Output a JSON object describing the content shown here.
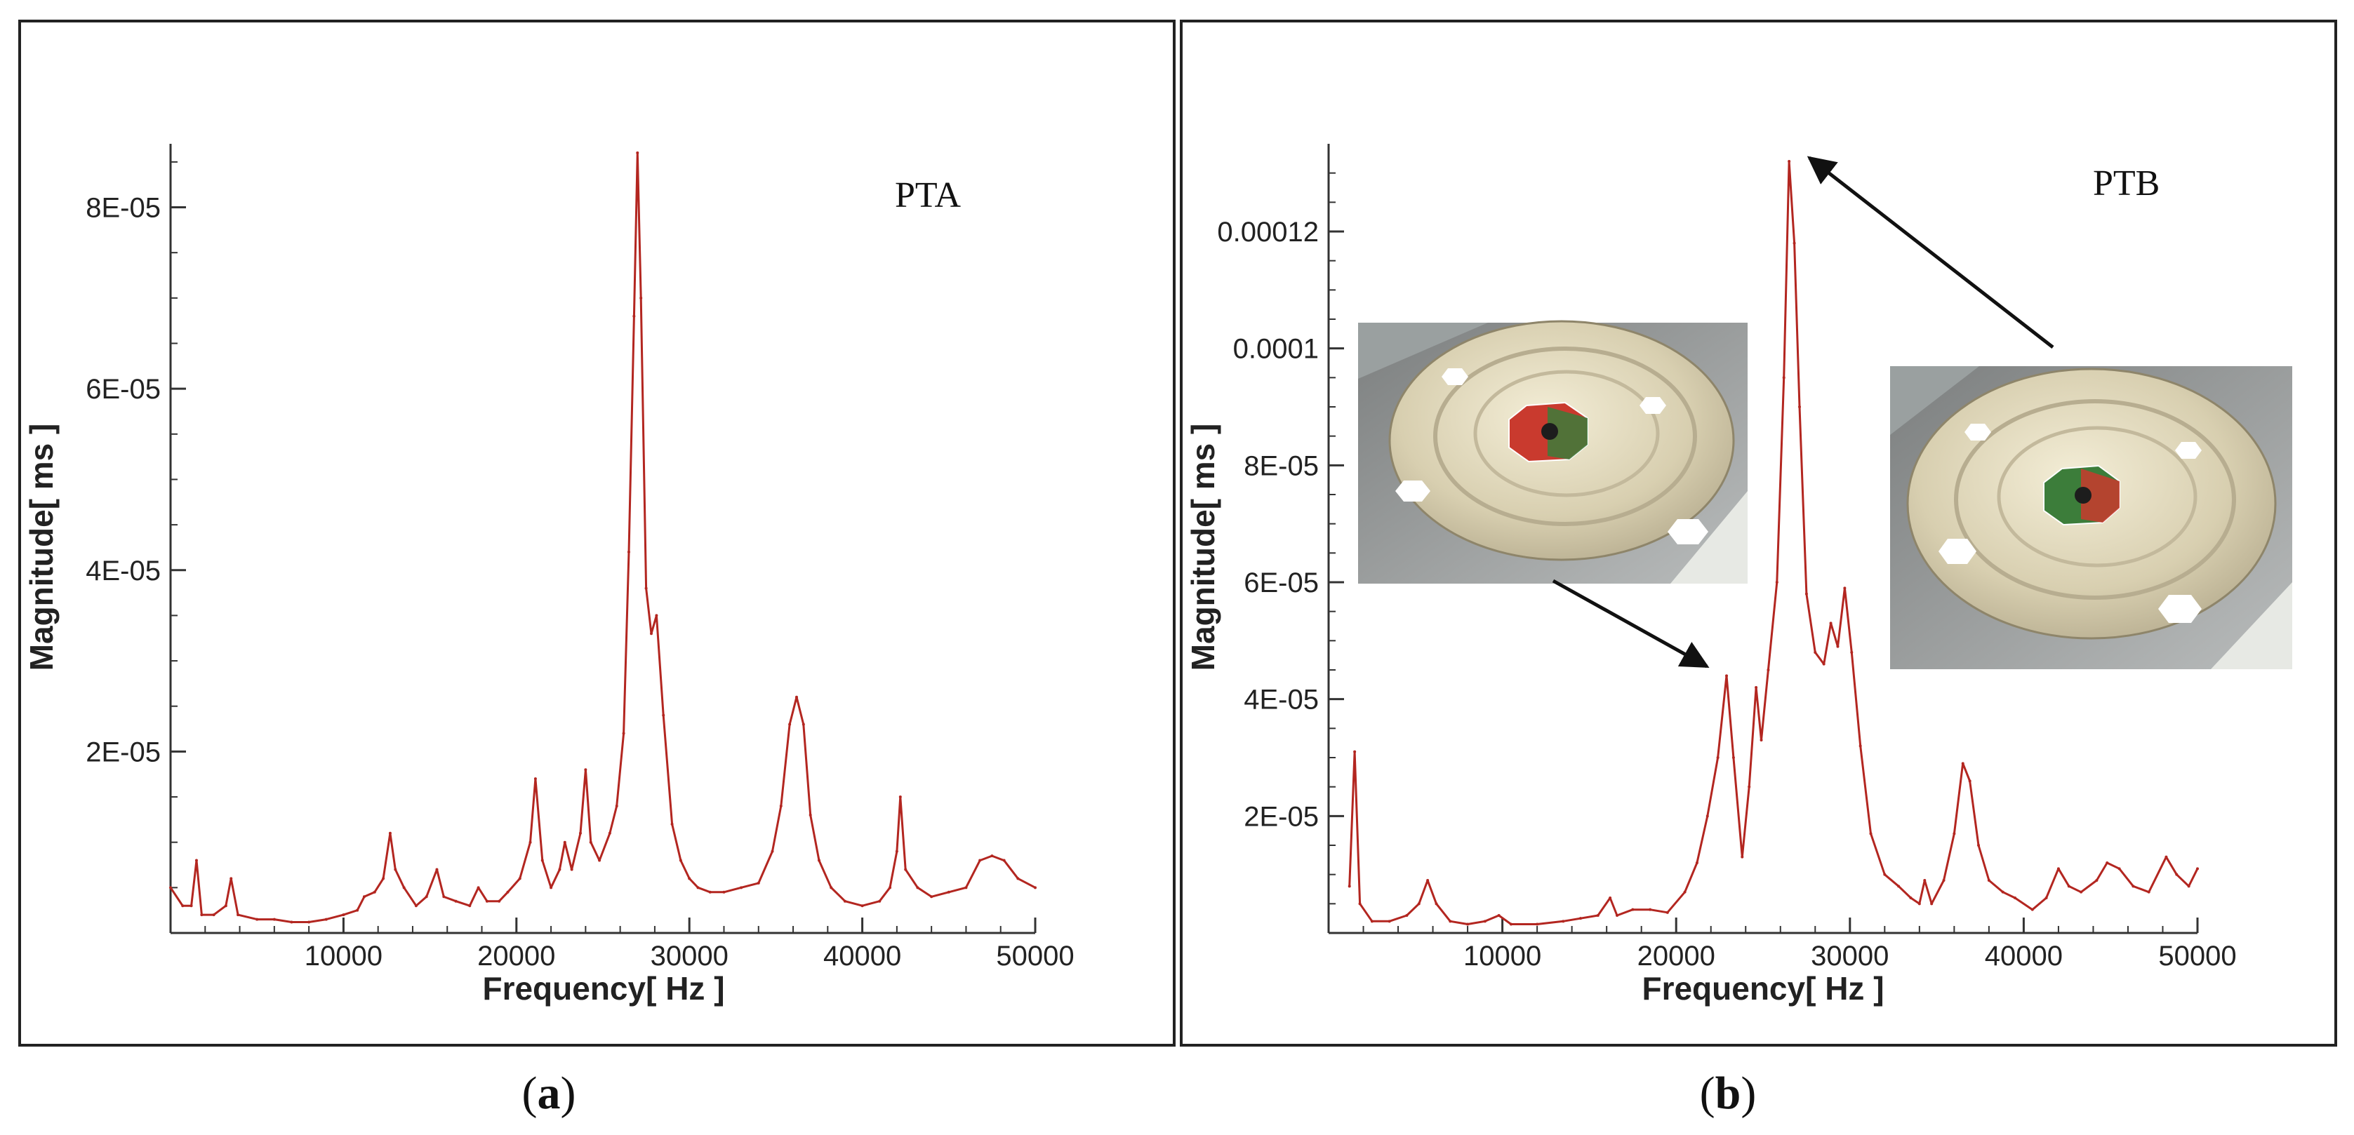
{
  "figure": {
    "captions": [
      {
        "letter": "a"
      },
      {
        "letter": "b"
      }
    ]
  },
  "colors": {
    "series": "#b32620",
    "axis": "#333333"
  },
  "chart_data": [
    {
      "type": "line",
      "label": "PTA",
      "xlabel": "Frequency[ Hz ]",
      "ylabel": "Magnitude[ ms ]",
      "xlim": [
        0,
        50000
      ],
      "ylim": [
        0,
        8.7e-05
      ],
      "xticks": [
        {
          "value": 10000,
          "label": "10000"
        },
        {
          "value": 20000,
          "label": "20000"
        },
        {
          "value": 30000,
          "label": "30000"
        },
        {
          "value": 40000,
          "label": "40000"
        },
        {
          "value": 50000,
          "label": "50000"
        }
      ],
      "yticks": [
        {
          "value": 2e-05,
          "label": "2E-05"
        },
        {
          "value": 4e-05,
          "label": "4E-05"
        },
        {
          "value": 6e-05,
          "label": "6E-05"
        },
        {
          "value": 8e-05,
          "label": "8E-05"
        }
      ],
      "series": [
        {
          "name": "PTA",
          "points": [
            [
              0,
              5e-06
            ],
            [
              700,
              3e-06
            ],
            [
              1200,
              3e-06
            ],
            [
              1500,
              8e-06
            ],
            [
              1800,
              2e-06
            ],
            [
              2500,
              2e-06
            ],
            [
              3200,
              3e-06
            ],
            [
              3500,
              6e-06
            ],
            [
              3900,
              2e-06
            ],
            [
              5000,
              1.5e-06
            ],
            [
              6000,
              1.5e-06
            ],
            [
              7000,
              1.2e-06
            ],
            [
              8000,
              1.2e-06
            ],
            [
              9000,
              1.5e-06
            ],
            [
              10000,
              2e-06
            ],
            [
              10800,
              2.5e-06
            ],
            [
              11200,
              4e-06
            ],
            [
              11800,
              4.5e-06
            ],
            [
              12300,
              6e-06
            ],
            [
              12700,
              1.1e-05
            ],
            [
              13000,
              7e-06
            ],
            [
              13500,
              5e-06
            ],
            [
              14200,
              3e-06
            ],
            [
              14800,
              4e-06
            ],
            [
              15400,
              7e-06
            ],
            [
              15800,
              4e-06
            ],
            [
              16500,
              3.5e-06
            ],
            [
              17300,
              3e-06
            ],
            [
              17800,
              5e-06
            ],
            [
              18300,
              3.5e-06
            ],
            [
              19000,
              3.5e-06
            ],
            [
              19500,
              4.5e-06
            ],
            [
              20200,
              6e-06
            ],
            [
              20800,
              1e-05
            ],
            [
              21100,
              1.7e-05
            ],
            [
              21500,
              8e-06
            ],
            [
              22000,
              5e-06
            ],
            [
              22500,
              7e-06
            ],
            [
              22800,
              1e-05
            ],
            [
              23200,
              7e-06
            ],
            [
              23700,
              1.1e-05
            ],
            [
              24000,
              1.8e-05
            ],
            [
              24300,
              1e-05
            ],
            [
              24800,
              8e-06
            ],
            [
              25400,
              1.1e-05
            ],
            [
              25800,
              1.4e-05
            ],
            [
              26200,
              2.2e-05
            ],
            [
              26500,
              4.2e-05
            ],
            [
              26800,
              6.8e-05
            ],
            [
              27000,
              8.6e-05
            ],
            [
              27200,
              7e-05
            ],
            [
              27500,
              3.8e-05
            ],
            [
              27800,
              3.3e-05
            ],
            [
              28100,
              3.5e-05
            ],
            [
              28500,
              2.4e-05
            ],
            [
              29000,
              1.2e-05
            ],
            [
              29500,
              8e-06
            ],
            [
              30000,
              6e-06
            ],
            [
              30500,
              5e-06
            ],
            [
              31200,
              4.5e-06
            ],
            [
              32000,
              4.5e-06
            ],
            [
              33000,
              5e-06
            ],
            [
              34000,
              5.5e-06
            ],
            [
              34800,
              9e-06
            ],
            [
              35300,
              1.4e-05
            ],
            [
              35800,
              2.3e-05
            ],
            [
              36200,
              2.6e-05
            ],
            [
              36600,
              2.3e-05
            ],
            [
              37000,
              1.3e-05
            ],
            [
              37500,
              8e-06
            ],
            [
              38200,
              5e-06
            ],
            [
              39000,
              3.5e-06
            ],
            [
              40000,
              3e-06
            ],
            [
              41000,
              3.5e-06
            ],
            [
              41600,
              5e-06
            ],
            [
              42000,
              9e-06
            ],
            [
              42200,
              1.5e-05
            ],
            [
              42500,
              7e-06
            ],
            [
              43200,
              5e-06
            ],
            [
              44000,
              4e-06
            ],
            [
              45000,
              4.5e-06
            ],
            [
              46000,
              5e-06
            ],
            [
              46800,
              8e-06
            ],
            [
              47500,
              8.5e-06
            ],
            [
              48200,
              8e-06
            ],
            [
              49000,
              6e-06
            ],
            [
              50000,
              5e-06
            ]
          ]
        }
      ]
    },
    {
      "type": "line",
      "label": "PTB",
      "xlabel": "Frequency[ Hz ]",
      "ylabel": "Magnitude[ ms ]",
      "xlim": [
        0,
        50000
      ],
      "ylim": [
        0,
        0.000135
      ],
      "xticks": [
        {
          "value": 10000,
          "label": "10000"
        },
        {
          "value": 20000,
          "label": "20000"
        },
        {
          "value": 30000,
          "label": "30000"
        },
        {
          "value": 40000,
          "label": "40000"
        },
        {
          "value": 50000,
          "label": "50000"
        }
      ],
      "yticks": [
        {
          "value": 2e-05,
          "label": "2E-05"
        },
        {
          "value": 4e-05,
          "label": "4E-05"
        },
        {
          "value": 6e-05,
          "label": "6E-05"
        },
        {
          "value": 8e-05,
          "label": "8E-05"
        },
        {
          "value": 0.0001,
          "label": "0.0001"
        },
        {
          "value": 0.00012,
          "label": "0.00012"
        }
      ],
      "series": [
        {
          "name": "PTB",
          "points": [
            [
              1200,
              8e-06
            ],
            [
              1500,
              3.1e-05
            ],
            [
              1800,
              5e-06
            ],
            [
              2500,
              2e-06
            ],
            [
              3500,
              2e-06
            ],
            [
              4500,
              3e-06
            ],
            [
              5200,
              5e-06
            ],
            [
              5700,
              9e-06
            ],
            [
              6200,
              5e-06
            ],
            [
              7000,
              2e-06
            ],
            [
              8000,
              1.5e-06
            ],
            [
              9000,
              2e-06
            ],
            [
              9800,
              3e-06
            ],
            [
              10500,
              1.5e-06
            ],
            [
              12000,
              1.5e-06
            ],
            [
              13500,
              2e-06
            ],
            [
              14500,
              2.5e-06
            ],
            [
              15500,
              3e-06
            ],
            [
              16200,
              6e-06
            ],
            [
              16600,
              3e-06
            ],
            [
              17500,
              4e-06
            ],
            [
              18500,
              4e-06
            ],
            [
              19500,
              3.5e-06
            ],
            [
              20500,
              7e-06
            ],
            [
              21200,
              1.2e-05
            ],
            [
              21800,
              2e-05
            ],
            [
              22400,
              3e-05
            ],
            [
              22900,
              4.4e-05
            ],
            [
              23300,
              3e-05
            ],
            [
              23800,
              1.3e-05
            ],
            [
              24200,
              2.5e-05
            ],
            [
              24600,
              4.2e-05
            ],
            [
              24900,
              3.3e-05
            ],
            [
              25300,
              4.5e-05
            ],
            [
              25800,
              6e-05
            ],
            [
              26200,
              9.5e-05
            ],
            [
              26500,
              0.000132
            ],
            [
              26800,
              0.000118
            ],
            [
              27100,
              9e-05
            ],
            [
              27500,
              5.8e-05
            ],
            [
              28000,
              4.8e-05
            ],
            [
              28500,
              4.6e-05
            ],
            [
              28900,
              5.3e-05
            ],
            [
              29300,
              4.9e-05
            ],
            [
              29700,
              5.9e-05
            ],
            [
              30100,
              4.8e-05
            ],
            [
              30600,
              3.2e-05
            ],
            [
              31200,
              1.7e-05
            ],
            [
              32000,
              1e-05
            ],
            [
              32800,
              8e-06
            ],
            [
              33500,
              6e-06
            ],
            [
              34000,
              5e-06
            ],
            [
              34300,
              9e-06
            ],
            [
              34700,
              5e-06
            ],
            [
              35400,
              9e-06
            ],
            [
              36000,
              1.7e-05
            ],
            [
              36500,
              2.9e-05
            ],
            [
              36900,
              2.6e-05
            ],
            [
              37400,
              1.5e-05
            ],
            [
              38000,
              9e-06
            ],
            [
              38800,
              7e-06
            ],
            [
              39500,
              6e-06
            ],
            [
              40500,
              4e-06
            ],
            [
              41300,
              6e-06
            ],
            [
              42000,
              1.1e-05
            ],
            [
              42600,
              8e-06
            ],
            [
              43300,
              7e-06
            ],
            [
              44200,
              9e-06
            ],
            [
              44800,
              1.2e-05
            ],
            [
              45500,
              1.1e-05
            ],
            [
              46300,
              8e-06
            ],
            [
              47200,
              7e-06
            ],
            [
              48200,
              1.3e-05
            ],
            [
              48800,
              1e-05
            ],
            [
              49500,
              8e-06
            ],
            [
              50000,
              1.1e-05
            ]
          ]
        }
      ],
      "annotations": [
        {
          "type": "arrow",
          "target": "peak near 26500 Hz",
          "label": "inset-right"
        },
        {
          "type": "arrow",
          "target": "peak near 22900 Hz",
          "label": "inset-left"
        }
      ]
    }
  ]
}
